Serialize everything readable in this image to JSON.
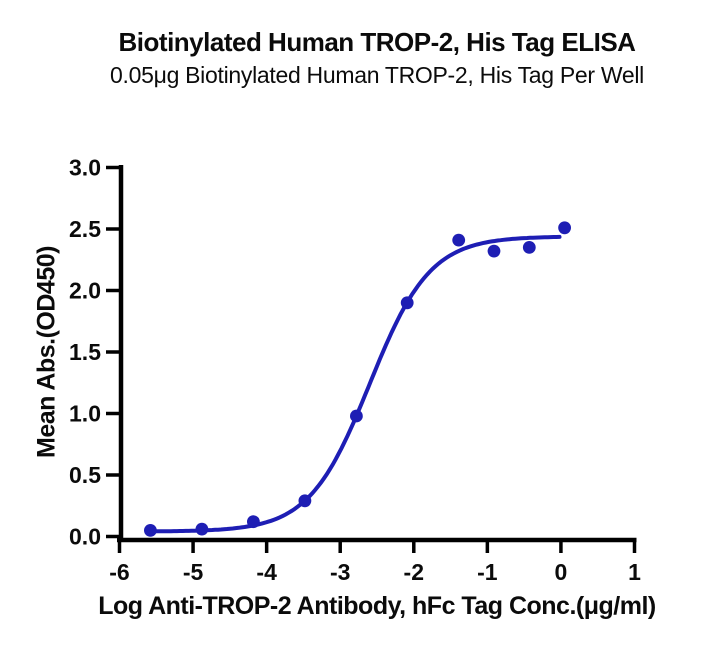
{
  "chart_data": {
    "type": "scatter",
    "title": "Biotinylated Human TROP-2, His Tag ELISA",
    "subtitle": "0.05μg Biotinylated Human TROP-2, His Tag Per Well",
    "xlabel": "Log Anti-TROP-2 Antibody, hFc Tag Conc.(μg/ml)",
    "ylabel": "Mean Abs.(OD450)",
    "xlim": [
      -6,
      1
    ],
    "ylim": [
      0,
      3
    ],
    "xticks": [
      -6,
      -5,
      -4,
      -3,
      -2,
      -1,
      0,
      1
    ],
    "xtick_labels": [
      "-6",
      "-5",
      "-4",
      "-3",
      "-2",
      "-1",
      "0",
      "1"
    ],
    "yticks": [
      0,
      0.5,
      1,
      1.5,
      2,
      2.5,
      3
    ],
    "ytick_labels": [
      "0.0",
      "0.5",
      "1.0",
      "1.5",
      "2.0",
      "2.5",
      "3.0"
    ],
    "grid": false,
    "legend": "none",
    "axis_color": "#000000",
    "series": [
      {
        "name": "Anti-TROP-2 Antibody, hFc Tag",
        "marker": "circle",
        "marker_color": "#1e1eb4",
        "line_color": "#1e1eb4",
        "x": [
          -5.58,
          -4.88,
          -4.18,
          -3.48,
          -2.78,
          -2.09,
          -1.39,
          -0.91,
          -0.43,
          0.05
        ],
        "y": [
          0.05,
          0.06,
          0.12,
          0.29,
          0.98,
          1.9,
          2.41,
          2.32,
          2.35,
          2.51
        ]
      }
    ],
    "fit_curve": {
      "model": "4PL",
      "bottom": 0.04,
      "top": 2.44,
      "logEC50": -2.6,
      "hillslope": 1.06,
      "x_start": -5.58,
      "x_end": 0.0
    }
  }
}
